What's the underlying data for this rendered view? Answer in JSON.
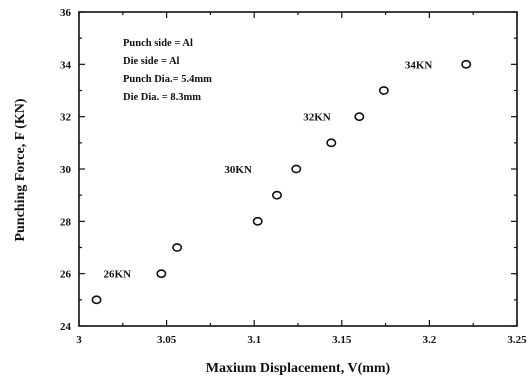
{
  "chart_data": {
    "type": "scatter",
    "xlabel": "Maxium Displacement, V(mm)",
    "ylabel": "Punching Force, F (KN)",
    "xlim": [
      3,
      3.25
    ],
    "ylim": [
      24,
      36
    ],
    "x_ticks": [
      "3",
      "3.05",
      "3.1",
      "3.15",
      "3.2",
      "3.25"
    ],
    "y_ticks": [
      "24",
      "26",
      "28",
      "30",
      "32",
      "34",
      "36"
    ],
    "x": [
      3.01,
      3.047,
      3.056,
      3.102,
      3.113,
      3.124,
      3.144,
      3.16,
      3.174,
      3.221
    ],
    "y": [
      25,
      26,
      27,
      28,
      29,
      30,
      31,
      32,
      33,
      34
    ],
    "grid": false,
    "info_box": [
      "Punch side = Al",
      "Die side = Al",
      "Punch Dia.= 5.4mm",
      "Die Dia. = 8.3mm"
    ],
    "annotations": [
      {
        "text": "26KN",
        "x": 3.014,
        "y": 26
      },
      {
        "text": "30KN",
        "x": 3.083,
        "y": 30
      },
      {
        "text": "32KN",
        "x": 3.128,
        "y": 32
      },
      {
        "text": "34KN",
        "x": 3.186,
        "y": 34
      }
    ]
  }
}
